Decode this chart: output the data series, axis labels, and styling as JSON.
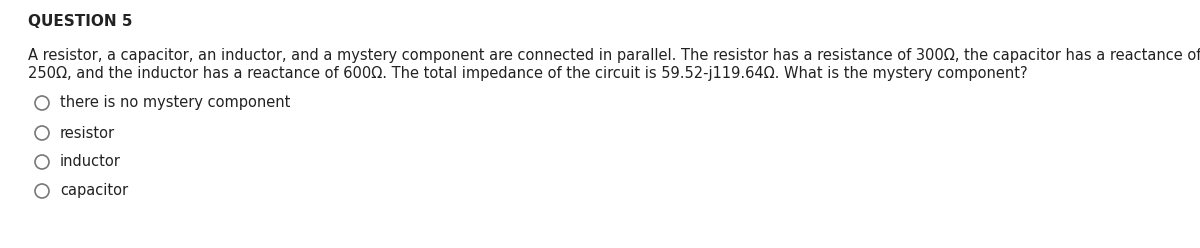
{
  "title": "QUESTION 5",
  "body_line1": "A resistor, a capacitor, an inductor, and a mystery component are connected in parallel. The resistor has a resistance of 300Ω, the capacitor has a reactance of",
  "body_line2": "250Ω, and the inductor has a reactance of 600Ω. The total impedance of the circuit is 59.52-j119.64Ω. What is the mystery component?",
  "options": [
    "there is no mystery component",
    "resistor",
    "inductor",
    "capacitor"
  ],
  "bg_color": "#ffffff",
  "text_color": "#222222",
  "title_fontsize": 11,
  "body_fontsize": 10.5,
  "option_fontsize": 10.5
}
